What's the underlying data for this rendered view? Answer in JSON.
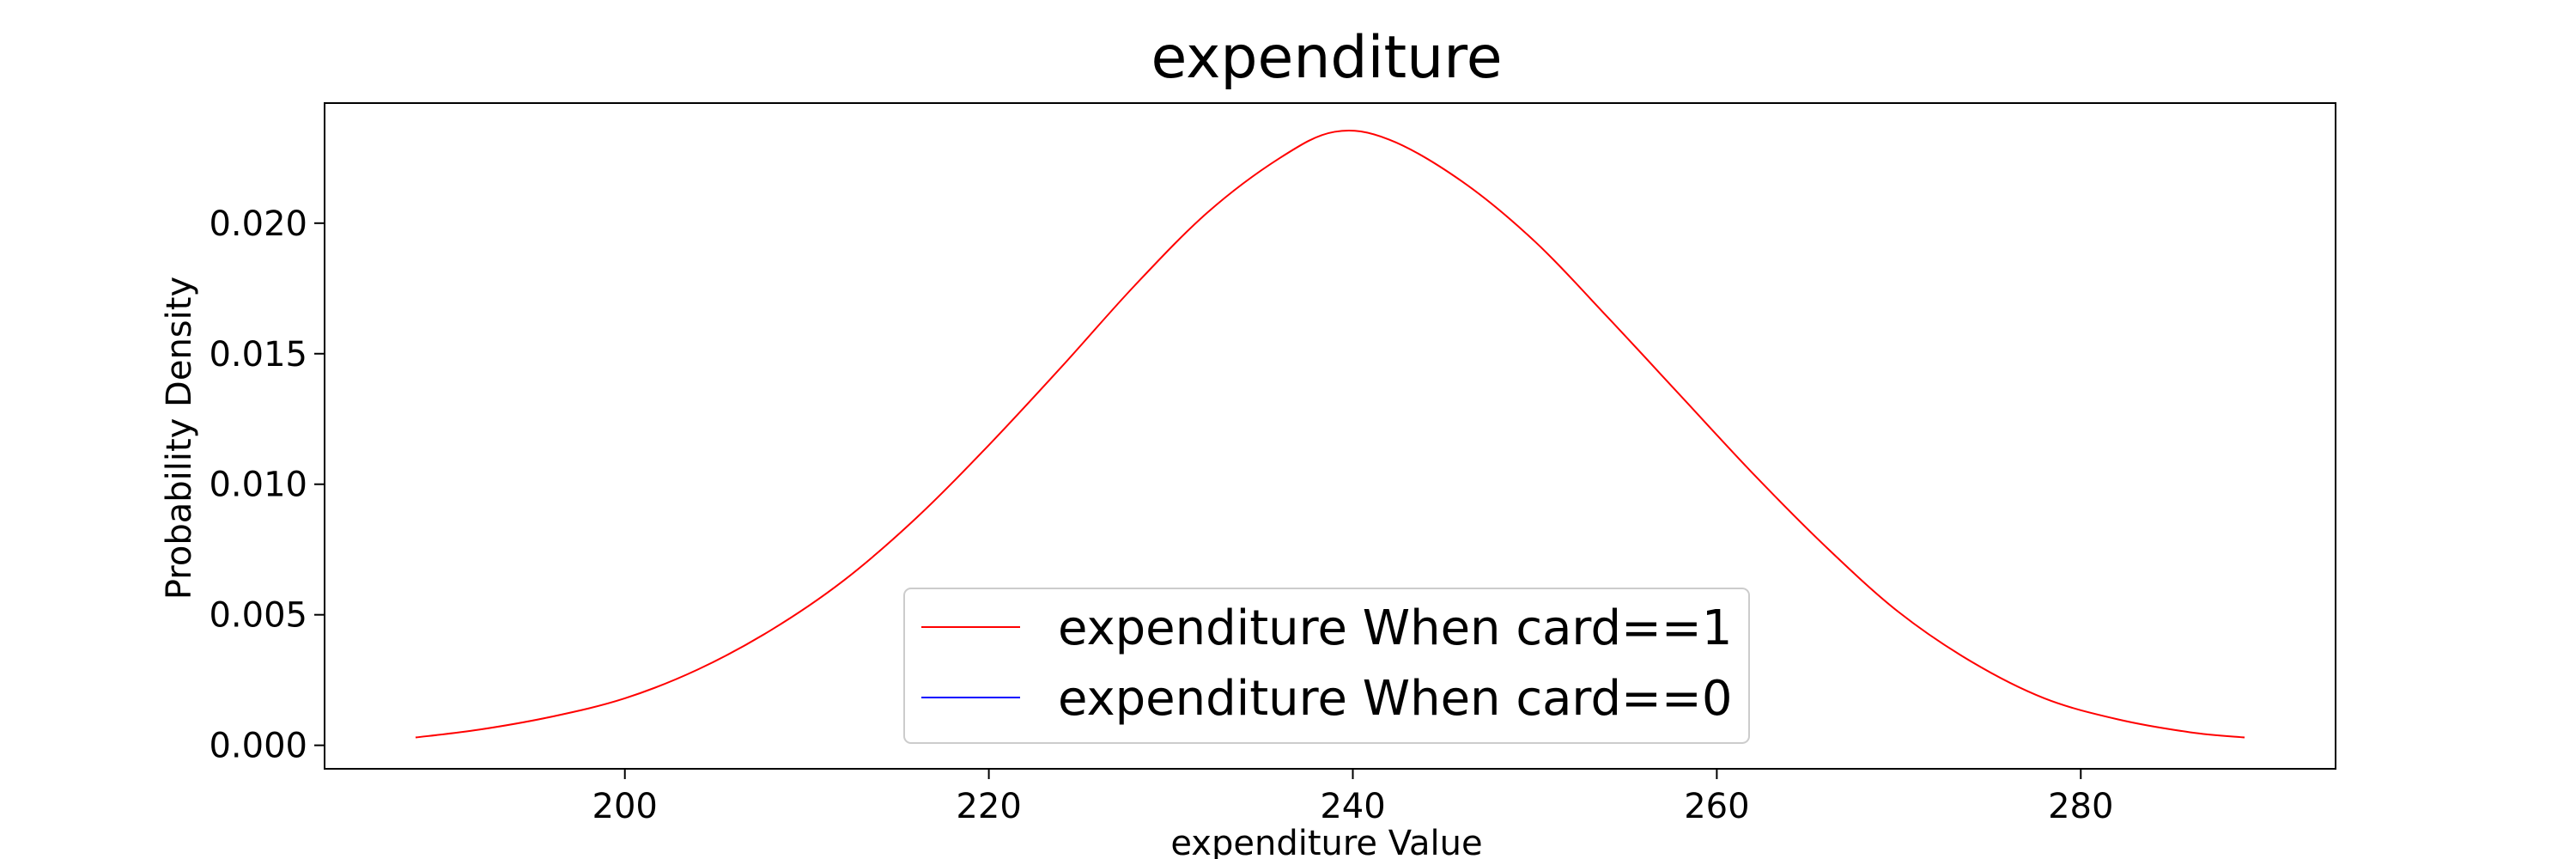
{
  "chart_data": {
    "type": "line",
    "title": "expenditure",
    "xlabel": "expenditure Value",
    "ylabel": "Probability Density",
    "xlim": [
      183.5,
      294
    ],
    "ylim": [
      -0.0009,
      0.0246
    ],
    "xticks": [
      200,
      220,
      240,
      260,
      280
    ],
    "yticks": [
      0.0,
      0.005,
      0.01,
      0.015,
      0.02
    ],
    "xtick_labels": [
      "200",
      "220",
      "240",
      "260",
      "280"
    ],
    "ytick_labels": [
      "0.000",
      "0.005",
      "0.010",
      "0.015",
      "0.020"
    ],
    "grid": false,
    "legend_position": "lower center",
    "series": [
      {
        "name": "expenditure When card==1",
        "color": "#ff0000",
        "x": [
          188.5,
          192,
          196,
          200,
          204,
          208,
          212,
          216,
          220,
          224,
          228,
          232,
          236,
          239,
          242,
          246,
          250,
          254,
          258,
          262,
          266,
          270,
          274,
          278,
          282,
          286,
          289
        ],
        "y": [
          0.0003,
          0.0006,
          0.0011,
          0.0018,
          0.0029,
          0.0044,
          0.0063,
          0.0087,
          0.0115,
          0.0145,
          0.0176,
          0.0204,
          0.0225,
          0.0235,
          0.0232,
          0.0216,
          0.0193,
          0.0164,
          0.0134,
          0.0104,
          0.0076,
          0.0051,
          0.0032,
          0.0018,
          0.001,
          0.0005,
          0.0003
        ]
      },
      {
        "name": "expenditure When card==0",
        "color": "#0000ff",
        "x": [],
        "y": []
      }
    ]
  }
}
